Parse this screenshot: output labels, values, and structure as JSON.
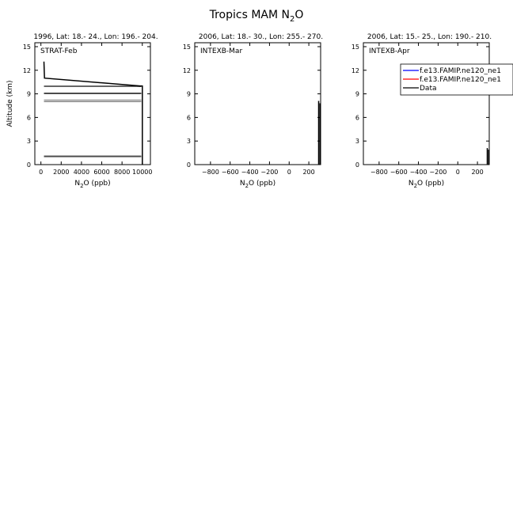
{
  "figure": {
    "title_main": "Tropics MAM N",
    "title_sub": "2",
    "title_tail": "O"
  },
  "chart_data": [
    {
      "type": "line",
      "header": "1996, Lat: 18.- 24., Lon: 196.- 204.",
      "inset_label": "STRAT-Feb",
      "ylabel": "Altitude (km)",
      "xlabel_main": "N",
      "xlabel_sub": "2",
      "xlabel_tail": "O (ppb)",
      "xlim": [
        -600,
        10800
      ],
      "ylim": [
        0,
        15.5
      ],
      "xticks": [
        0,
        2000,
        4000,
        6000,
        8000,
        10000
      ],
      "yticks": [
        0,
        3,
        6,
        9,
        12,
        15
      ],
      "grid": false,
      "series": [
        {
          "color": "#000000",
          "width": 1.5,
          "points": [
            [
              300,
              13.1
            ],
            [
              350,
              11.0
            ],
            [
              9800,
              10.0
            ],
            [
              10000,
              10.0
            ],
            [
              10000,
              0
            ]
          ]
        }
      ],
      "range_segments": [
        {
          "y": 10.0,
          "x1": 300,
          "x2": 9900
        },
        {
          "y": 9.9,
          "x1": 300,
          "x2": 9900
        },
        {
          "y": 9.1,
          "x1": 300,
          "x2": 9900
        },
        {
          "y": 9.0,
          "x1": 300,
          "x2": 9900
        },
        {
          "y": 8.2,
          "x1": 300,
          "x2": 9900
        },
        {
          "y": 8.0,
          "x1": 300,
          "x2": 9900
        },
        {
          "y": 1.1,
          "x1": 300,
          "x2": 9900
        },
        {
          "y": 1.0,
          "x1": 300,
          "x2": 9900
        }
      ]
    },
    {
      "type": "line",
      "header": "2006, Lat: 18.- 30., Lon: 255.- 270.",
      "inset_label": "INTEXB-Mar",
      "ylabel": "",
      "xlabel_main": "N",
      "xlabel_sub": "2",
      "xlabel_tail": "O (ppb)",
      "xlim": [
        -960,
        320
      ],
      "ylim": [
        0,
        15.5
      ],
      "xticks": [
        -800,
        -600,
        -400,
        -200,
        0,
        200
      ],
      "yticks": [
        0,
        3,
        6,
        9,
        12,
        15
      ],
      "grid": false,
      "series": [
        {
          "color": "#000000",
          "width": 1.5,
          "points": [
            [
              300,
              0
            ],
            [
              300,
              8.1
            ]
          ]
        },
        {
          "color": "#000000",
          "width": 1,
          "points": [
            [
              312,
              0
            ],
            [
              312,
              7.8
            ]
          ]
        }
      ],
      "range_segments": []
    },
    {
      "type": "line",
      "header": "2006, Lat: 15.- 25., Lon: 190.- 210.",
      "inset_label": "INTEXB-Apr",
      "ylabel": "",
      "xlabel_main": "N",
      "xlabel_sub": "2",
      "xlabel_tail": "O (ppb)",
      "xlim": [
        -960,
        320
      ],
      "ylim": [
        0,
        15.5
      ],
      "xticks": [
        -800,
        -600,
        -400,
        -200,
        0,
        200
      ],
      "yticks": [
        0,
        3,
        6,
        9,
        12,
        15
      ],
      "grid": false,
      "legend": {
        "placement": "top-right",
        "entries": [
          {
            "label": "f.e13.FAMIP.ne120_ne1",
            "color": "#0000ff"
          },
          {
            "label": "f.e13.FAMIP.ne120_ne1",
            "color": "#ff0000"
          },
          {
            "label": "Data",
            "color": "#000000"
          }
        ]
      },
      "series": [
        {
          "color": "#000000",
          "width": 1.5,
          "points": [
            [
              300,
              0
            ],
            [
              300,
              2.1
            ]
          ]
        },
        {
          "color": "#000000",
          "width": 1,
          "points": [
            [
              312,
              0
            ],
            [
              312,
              1.9
            ]
          ]
        }
      ],
      "range_segments": []
    }
  ]
}
